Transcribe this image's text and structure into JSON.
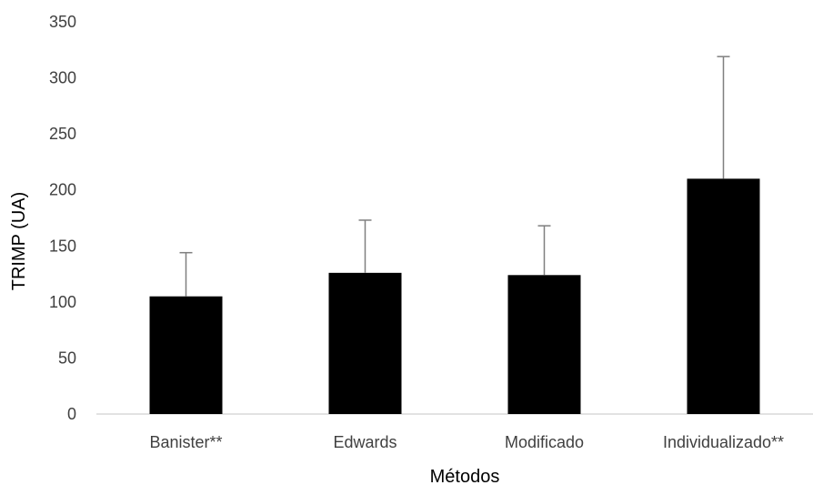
{
  "chart_data": {
    "type": "bar",
    "categories": [
      "Banister**",
      "Edwards",
      "Modificado",
      "Individualizado**"
    ],
    "values": [
      105,
      126,
      124,
      210
    ],
    "error_upper": [
      144,
      173,
      168,
      319
    ],
    "xlabel": "Métodos",
    "ylabel": "TRIMP (UA)",
    "ylim": [
      0,
      350
    ],
    "yticks": [
      "0",
      "50",
      "100",
      "150",
      "200",
      "250",
      "300",
      "350"
    ],
    "grid": false,
    "legend": "none",
    "bar_color": "#000000",
    "error_bar_color": "#7f7f7f",
    "axis_color": "#d9d9d9"
  }
}
